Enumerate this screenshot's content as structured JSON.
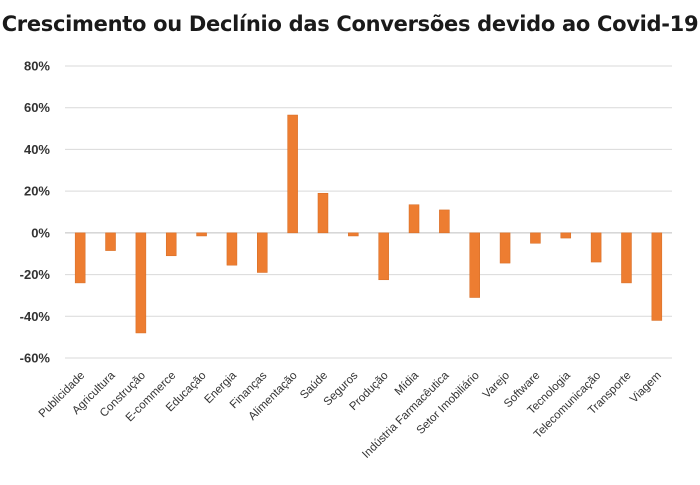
{
  "chart_data": {
    "type": "bar",
    "title": "Crescimento ou Declínio das Conversões devido ao Covid-19",
    "xlabel": "",
    "ylabel": "",
    "ylim": [
      -60,
      80
    ],
    "yticks": [
      80,
      60,
      40,
      20,
      0,
      -20,
      -40,
      -60
    ],
    "ytick_labels": [
      "80%",
      "60%",
      "40%",
      "20%",
      "0%",
      "-20%",
      "-40%",
      "-60%"
    ],
    "grid": true,
    "bar_color": "#ed7d31",
    "categories": [
      "Publicidade",
      "Agricultura",
      "Construção",
      "E-commerce",
      "Educação",
      "Energia",
      "Finanças",
      "Alimentação",
      "Saúde",
      "Seguros",
      "Produção",
      "Mídia",
      "Indústria Farmacêutica",
      "Setor Imobiliário",
      "Varejo",
      "Software",
      "Tecnologia",
      "Telecomunicação",
      "Transporte",
      "Viagem"
    ],
    "values": [
      -24,
      -8.5,
      -48,
      -11,
      -1.5,
      -15.5,
      -19,
      56.5,
      19,
      -1.5,
      -22.5,
      13.5,
      11,
      -31,
      -14.5,
      -5,
      -2.5,
      -14,
      -24,
      -42
    ]
  }
}
